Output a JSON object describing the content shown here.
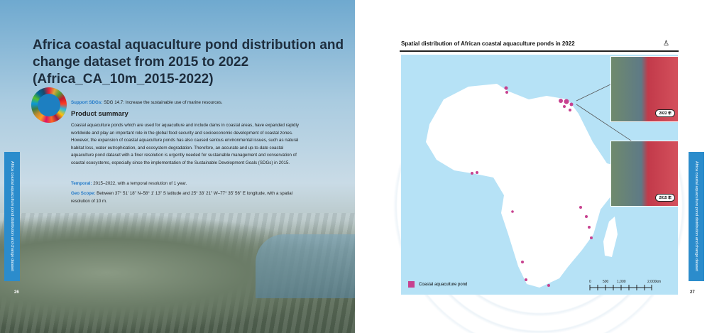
{
  "left_page": {
    "title": "Africa coastal aquaculture pond distribution and change dataset from 2015 to 2022 (Africa_CA_10m_2015-2022)",
    "support_label": "Support SDGs:",
    "support_text": "SDG 14.7:  Increase the sustainable use of marine resources.",
    "summary_heading": "Product summary",
    "summary": "Coastal aquaculture ponds which are used for aquaculture and include dams in coastal areas, have expanded rapidly worldwide and play an important role in the global food security and socioeconomic development of coastal zones. However, the expansion of coastal aquaculture ponds has also caused serious environmental issues, such as natural habitat loss, water eutrophication, and ecosystem degradation. Therefore, an accurate and up-to-date coastal aquaculture pond dataset with a finer resolution is urgently needed for sustainable management and conservation of coastal ecosystems, especially since the implementation of the Sustainable Development Goals (SDGs) in 2015.",
    "temporal_label": "Temporal:",
    "temporal_text": "2015–2022, with a temporal resolution of 1 year.",
    "geo_label": "Geo Scope:",
    "geo_text": "Between 37° 51' 18\" N–58° 1' 13\" S latitude and 25° 33' 21\" W–77° 35' 56\" E longitude, with a spatial resolution of 10 m.",
    "side_tab": "Africa coastal aquaculture pond distribution and change dataset",
    "page_number": "26"
  },
  "right_page": {
    "title": "Spatial distribution of African coastal aquaculture ponds in 2022",
    "inset_top_year": "2022 年",
    "inset_bottom_year": "2015 年",
    "legend_label": "Coastal aquaculture pond",
    "pond_color": "#c7418f",
    "scale_labels": [
      "0",
      "500",
      "1,000",
      "2,000km"
    ],
    "side_tab": "Africa coastal aquaculture pond distribution and change dataset",
    "page_number": "27"
  }
}
